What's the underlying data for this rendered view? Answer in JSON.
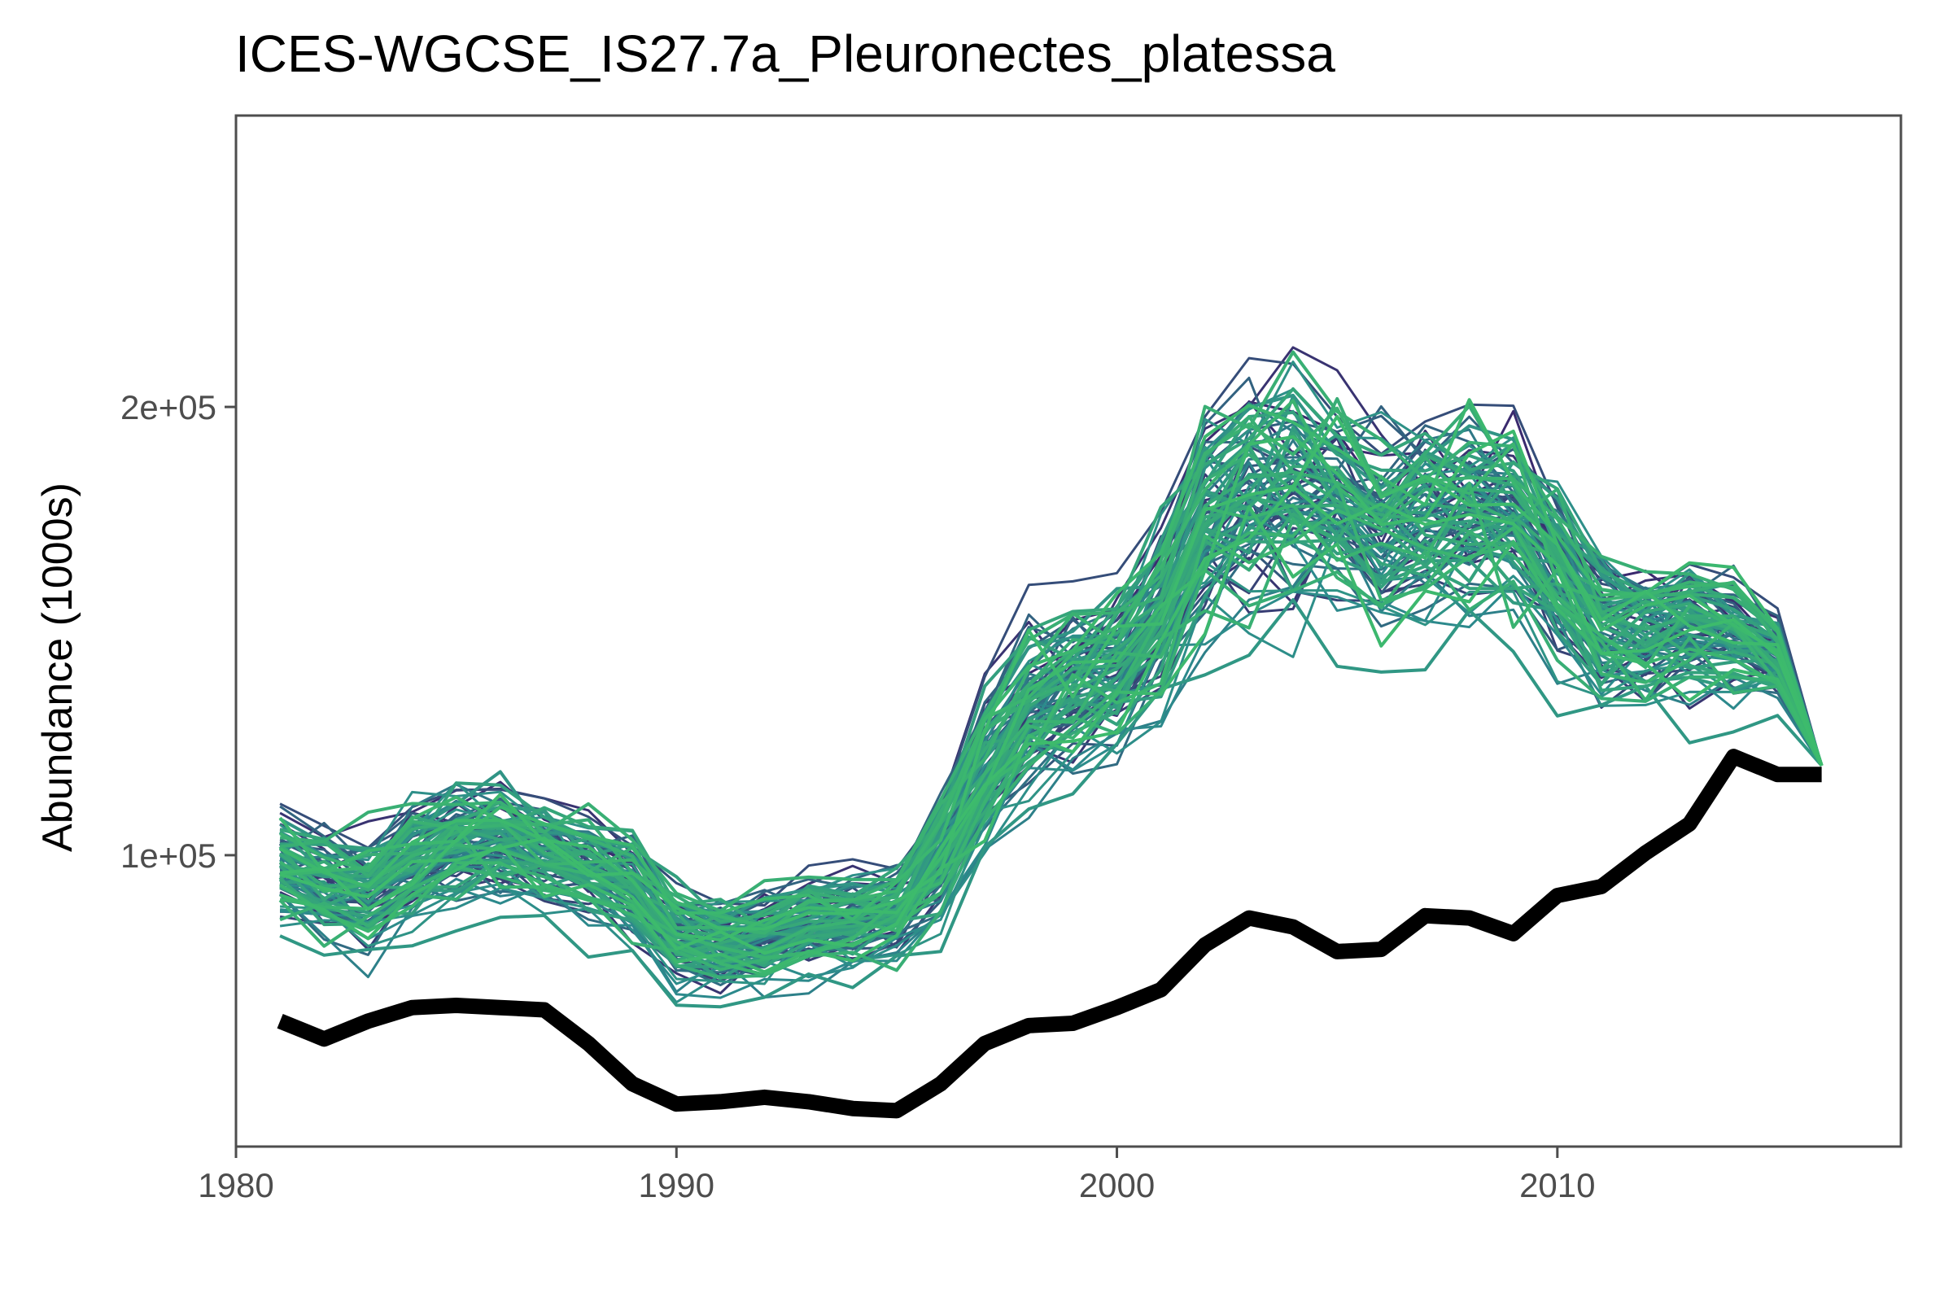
{
  "chart_data": {
    "type": "line",
    "title": "ICES-WGCSE_IS27.7a_Pleuronectes_platessa",
    "xlabel": "",
    "ylabel": "Abundance (1000s)",
    "xlim": [
      1980,
      2017.8
    ],
    "ylim": [
      35000,
      265000
    ],
    "grid": false,
    "legend": "none",
    "x_ticks": [
      1980,
      1990,
      2000,
      2010
    ],
    "x_tick_labels": [
      "1980",
      "1990",
      "2000",
      "2010"
    ],
    "y_ticks": [
      100000,
      200000
    ],
    "y_tick_labels": [
      "1e+05",
      "2e+05"
    ],
    "colors": {
      "ensemble_start": "#3a2a6e",
      "ensemble_mid": "#2c8a8c",
      "ensemble_end": "#3dbb6c",
      "reference_line": "#000000",
      "axis": "#4d4d4d"
    },
    "x": [
      1981,
      1982,
      1983,
      1984,
      1985,
      1986,
      1987,
      1988,
      1989,
      1990,
      1991,
      1992,
      1993,
      1994,
      1995,
      1996,
      1997,
      1998,
      1999,
      2000,
      2001,
      2002,
      2003,
      2004,
      2005,
      2006,
      2007,
      2008,
      2009,
      2010,
      2011,
      2012,
      2013,
      2014,
      2015,
      2016
    ],
    "reference_series": [
      63000,
      59000,
      63000,
      66000,
      66500,
      66000,
      65500,
      58000,
      49000,
      44500,
      45000,
      46000,
      45000,
      43500,
      43000,
      49000,
      58000,
      62000,
      62500,
      66000,
      70000,
      80000,
      86000,
      84000,
      78500,
      79000,
      86500,
      86000,
      82500,
      91000,
      93000,
      100500,
      107000,
      122000,
      118000,
      118000
    ],
    "ensemble_center": [
      98000,
      94000,
      92000,
      99000,
      103000,
      104000,
      101000,
      98000,
      93000,
      82000,
      80000,
      82000,
      85000,
      86000,
      88000,
      100000,
      120000,
      133000,
      138000,
      142000,
      155000,
      175000,
      182000,
      183000,
      180000,
      174000,
      176000,
      178000,
      176000,
      164000,
      152000,
      150000,
      152000,
      150000,
      145000,
      120000
    ],
    "ensemble_spread": [
      10000,
      10500,
      11000,
      11000,
      11000,
      10500,
      10000,
      10000,
      9500,
      8500,
      8000,
      8500,
      8500,
      9000,
      9500,
      12000,
      15000,
      15000,
      15000,
      16000,
      18000,
      20000,
      22000,
      22000,
      20000,
      19000,
      18500,
      18000,
      18000,
      17000,
      15000,
      14000,
      13000,
      11000,
      7000,
      0
    ],
    "ensemble_count": 90
  }
}
